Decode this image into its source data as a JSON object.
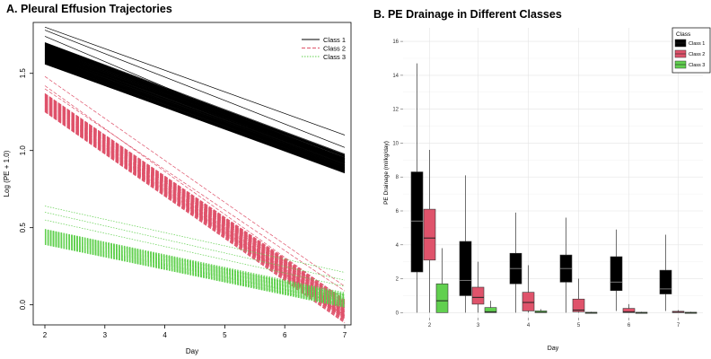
{
  "chart_data": [
    {
      "type": "line",
      "title": "A. Pleural Effusion Trajectories",
      "xlabel": "Day",
      "ylabel": "Log (PE + 1.0)",
      "xlim": [
        2,
        7
      ],
      "ylim": [
        -0.13,
        1.83
      ],
      "x_ticks": [
        "2",
        "3",
        "4",
        "5",
        "6",
        "7"
      ],
      "y_ticks": [
        "0.0",
        "0.5",
        "1.0",
        "1.5"
      ],
      "grid": false,
      "legend_position": "top-right",
      "series": [
        {
          "name": "Class 1",
          "color": "#000000",
          "dash": "solid",
          "band_start": [
            1.56,
            1.7
          ],
          "band_end": [
            0.85,
            0.98
          ],
          "outliers": [
            [
              1.8,
              1.1
            ],
            [
              1.78,
              1.02
            ],
            [
              1.74,
              0.92
            ]
          ]
        },
        {
          "name": "Class 2",
          "color": "#df536b",
          "dash": "dashed",
          "band_start": [
            1.25,
            1.37
          ],
          "band_end": [
            -0.12,
            0.04
          ],
          "outliers": [
            [
              1.48,
              0.12
            ],
            [
              1.42,
              0.03
            ],
            [
              1.4,
              0.09
            ]
          ]
        },
        {
          "name": "Class 3",
          "color": "#61d04f",
          "dash": "dotted",
          "band_start": [
            0.39,
            0.49
          ],
          "band_end": [
            -0.02,
            0.08
          ],
          "outliers": [
            [
              0.64,
              0.21
            ],
            [
              0.6,
              0.16
            ],
            [
              0.55,
              0.12
            ]
          ]
        }
      ]
    },
    {
      "type": "box",
      "title": "B. PE Drainage in Different Classes",
      "xlabel": "Day",
      "ylabel": "PE Drainage (ml/kg/day)",
      "ylim": [
        -0.3,
        16.8
      ],
      "y_ticks": [
        "0",
        "2",
        "4",
        "6",
        "8",
        "10",
        "12",
        "14",
        "16"
      ],
      "categories": [
        "2",
        "3",
        "4",
        "5",
        "6",
        "7"
      ],
      "grid": true,
      "legend_title": "Class",
      "legend_position": "top-right",
      "series": [
        {
          "name": "Class 1",
          "color": "#000000",
          "boxes": [
            {
              "min": 0.0,
              "q1": 2.4,
              "median": 5.4,
              "q3": 8.3,
              "max": 14.7
            },
            {
              "min": 0.0,
              "q1": 1.0,
              "median": 1.9,
              "q3": 4.2,
              "max": 8.1
            },
            {
              "min": 0.0,
              "q1": 1.7,
              "median": 2.6,
              "q3": 3.5,
              "max": 5.9
            },
            {
              "min": 0.0,
              "q1": 1.8,
              "median": 2.6,
              "q3": 3.4,
              "max": 5.6
            },
            {
              "min": 0.1,
              "q1": 1.3,
              "median": 1.8,
              "q3": 3.3,
              "max": 4.9
            },
            {
              "min": 0.1,
              "q1": 1.1,
              "median": 1.4,
              "q3": 2.5,
              "max": 4.6
            }
          ]
        },
        {
          "name": "Class 2",
          "color": "#df536b",
          "boxes": [
            {
              "min": 0.0,
              "q1": 3.1,
              "median": 4.4,
              "q3": 6.1,
              "max": 9.6
            },
            {
              "min": 0.0,
              "q1": 0.5,
              "median": 0.9,
              "q3": 1.5,
              "max": 3.0
            },
            {
              "min": 0.0,
              "q1": 0.1,
              "median": 0.6,
              "q3": 1.2,
              "max": 2.8
            },
            {
              "min": 0.0,
              "q1": 0.05,
              "median": 0.15,
              "q3": 0.8,
              "max": 2.0
            },
            {
              "min": 0.0,
              "q1": 0.0,
              "median": 0.05,
              "q3": 0.25,
              "max": 0.5
            },
            {
              "min": 0.0,
              "q1": 0.0,
              "median": 0.02,
              "q3": 0.08,
              "max": 0.15
            }
          ]
        },
        {
          "name": "Class 3",
          "color": "#61d04f",
          "boxes": [
            {
              "min": 0.0,
              "q1": 0.0,
              "median": 0.7,
              "q3": 1.7,
              "max": 3.8
            },
            {
              "min": 0.0,
              "q1": 0.0,
              "median": 0.05,
              "q3": 0.3,
              "max": 0.7
            },
            {
              "min": 0.0,
              "q1": 0.0,
              "median": 0.02,
              "q3": 0.1,
              "max": 0.2
            },
            {
              "min": 0.0,
              "q1": 0.0,
              "median": 0.0,
              "q3": 0.02,
              "max": 0.05
            },
            {
              "min": 0.0,
              "q1": 0.0,
              "median": 0.0,
              "q3": 0.02,
              "max": 0.05
            },
            {
              "min": 0.0,
              "q1": 0.0,
              "median": 0.0,
              "q3": 0.02,
              "max": 0.05
            }
          ]
        }
      ]
    }
  ]
}
